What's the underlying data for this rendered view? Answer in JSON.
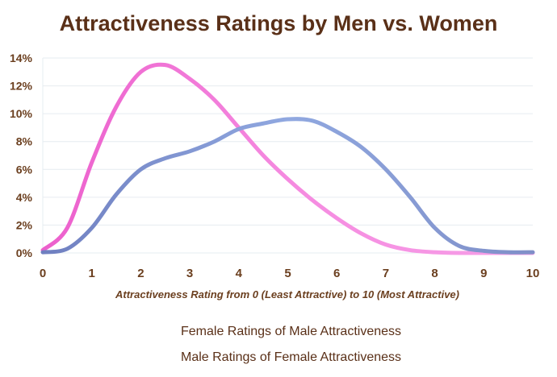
{
  "chart_data": {
    "type": "line",
    "title": "Attractiveness Ratings by Men vs. Women",
    "xlabel": "Attractiveness Rating from 0 (Least Attractive) to 10 (Most Attractive)",
    "ylabel": "",
    "xlim": [
      0,
      10
    ],
    "ylim": [
      0,
      14
    ],
    "x_ticks": [
      "0",
      "1",
      "2",
      "3",
      "4",
      "5",
      "6",
      "7",
      "8",
      "9",
      "10"
    ],
    "y_ticks": [
      "0%",
      "2%",
      "4%",
      "6%",
      "8%",
      "10%",
      "12%",
      "14%"
    ],
    "grid": true,
    "legend_position": "bottom",
    "x": [
      0,
      0.5,
      1,
      1.5,
      2,
      2.5,
      3,
      3.5,
      4,
      4.5,
      5,
      5.5,
      6,
      6.5,
      7,
      7.5,
      8,
      8.5,
      9,
      9.5,
      10
    ],
    "series": [
      {
        "name": "Female Ratings of Male Attractiveness",
        "color": "#f07ad8",
        "values": [
          0.2,
          1.8,
          6.5,
          10.5,
          13.0,
          13.5,
          12.5,
          11.0,
          9.0,
          7.0,
          5.3,
          3.8,
          2.5,
          1.4,
          0.6,
          0.2,
          0.05,
          0,
          0,
          0,
          0
        ]
      },
      {
        "name": "Male Ratings of Female Attractiveness",
        "color": "#8a9fd8",
        "values": [
          0.05,
          0.3,
          1.8,
          4.2,
          6.0,
          6.8,
          7.3,
          8.0,
          8.9,
          9.3,
          9.6,
          9.5,
          8.7,
          7.6,
          6.0,
          4.0,
          1.8,
          0.5,
          0.15,
          0.05,
          0.05
        ]
      }
    ]
  }
}
